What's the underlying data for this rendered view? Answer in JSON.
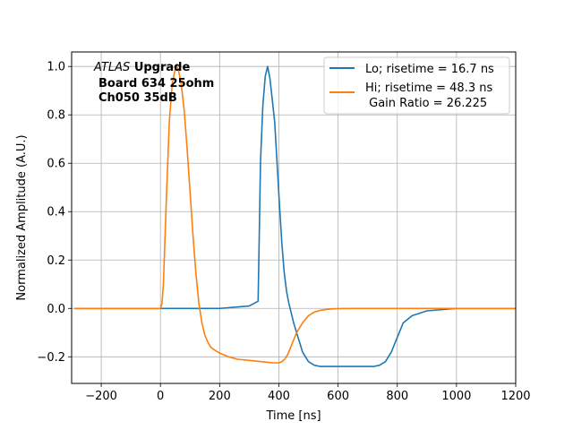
{
  "chart_data": {
    "type": "line",
    "xlabel": "Time [ns]",
    "ylabel": "Normalized Amplitude (A.U.)",
    "xlim": [
      -300,
      1200
    ],
    "ylim": [
      -0.31,
      1.06
    ],
    "xticks": [
      -200,
      0,
      200,
      400,
      600,
      800,
      1000,
      1200
    ],
    "xtick_labels": [
      "−200",
      "0",
      "200",
      "400",
      "600",
      "800",
      "1000",
      "1200"
    ],
    "yticks": [
      -0.2,
      0.0,
      0.2,
      0.4,
      0.6,
      0.8,
      1.0
    ],
    "ytick_labels": [
      "−0.2",
      "0.0",
      "0.2",
      "0.4",
      "0.6",
      "0.8",
      "1.0"
    ],
    "grid": true,
    "legend_position": "top-right",
    "annotation": {
      "atlas": "ATLAS",
      "upgrade": "Upgrade",
      "line2": "Board 634 25ohm",
      "line3": "Ch050 35dB"
    },
    "series": [
      {
        "name": "Lo; risetime = 16.7 ns",
        "color": "#1f77b4",
        "x": [
          -290,
          -200,
          -100,
          0,
          100,
          200,
          300,
          330,
          338,
          346,
          354,
          362,
          370,
          378,
          386,
          394,
          402,
          410,
          418,
          426,
          434,
          442,
          450,
          460,
          480,
          500,
          520,
          540,
          560,
          580,
          600,
          620,
          640,
          660,
          680,
          700,
          720,
          740,
          760,
          780,
          800,
          820,
          850,
          900,
          1000,
          1100,
          1200
        ],
        "y": [
          0.0,
          0.0,
          0.0,
          0.0,
          0.0,
          0.0,
          0.01,
          0.03,
          0.61,
          0.84,
          0.96,
          1.0,
          0.95,
          0.86,
          0.77,
          0.6,
          0.43,
          0.27,
          0.15,
          0.07,
          0.02,
          -0.02,
          -0.06,
          -0.1,
          -0.18,
          -0.22,
          -0.235,
          -0.24,
          -0.24,
          -0.24,
          -0.24,
          -0.24,
          -0.24,
          -0.24,
          -0.24,
          -0.24,
          -0.24,
          -0.235,
          -0.22,
          -0.18,
          -0.12,
          -0.06,
          -0.03,
          -0.01,
          0.0,
          0.0,
          0.0
        ]
      },
      {
        "name": "Hi; risetime = 48.3 ns",
        "name2": " Gain Ratio = 26.225",
        "color": "#ff7f0e",
        "x": [
          -290,
          -100,
          0,
          5,
          10,
          20,
          30,
          40,
          50,
          55,
          60,
          70,
          80,
          90,
          100,
          110,
          120,
          130,
          140,
          150,
          160,
          170,
          180,
          200,
          230,
          260,
          300,
          340,
          380,
          400,
          410,
          420,
          430,
          440,
          460,
          480,
          500,
          520,
          540,
          560,
          580,
          600,
          650,
          700,
          800,
          1000,
          1200
        ],
        "y": [
          0.0,
          0.0,
          0.0,
          0.02,
          0.1,
          0.45,
          0.77,
          0.93,
          0.99,
          1.0,
          0.99,
          0.93,
          0.82,
          0.66,
          0.48,
          0.3,
          0.14,
          0.02,
          -0.06,
          -0.11,
          -0.14,
          -0.16,
          -0.17,
          -0.185,
          -0.2,
          -0.21,
          -0.215,
          -0.22,
          -0.225,
          -0.225,
          -0.22,
          -0.21,
          -0.19,
          -0.16,
          -0.1,
          -0.06,
          -0.03,
          -0.015,
          -0.008,
          -0.004,
          -0.002,
          -0.001,
          0.0,
          0.0,
          0.0,
          0.0,
          0.0
        ]
      }
    ]
  }
}
